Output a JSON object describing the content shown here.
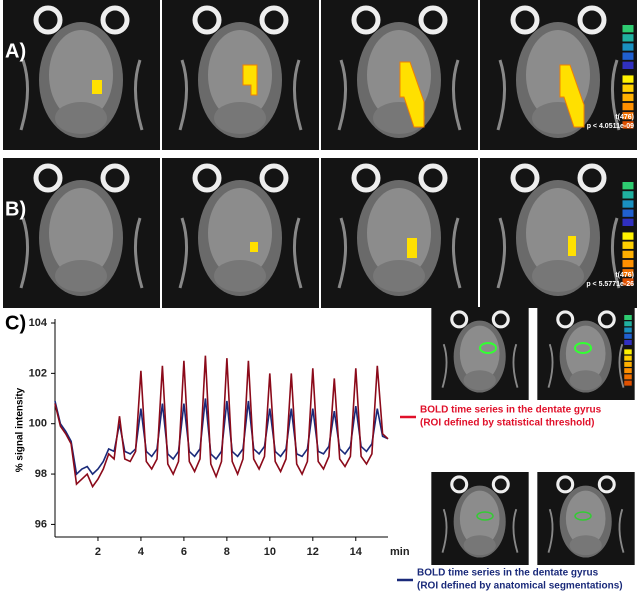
{
  "panels": {
    "a": {
      "label": "A)",
      "stat": "t(476)",
      "p": "p < 4.0511e-09"
    },
    "b": {
      "label": "B)",
      "stat": "t(476)",
      "p": "p < 5.5771e-26"
    },
    "c": {
      "label": "C)"
    }
  },
  "chart_data": {
    "type": "line",
    "ylabel": "% signal intensity",
    "xlabel": "min",
    "x": [
      0,
      0.25,
      0.5,
      0.75,
      1,
      1.25,
      1.5,
      1.75,
      2,
      2.25,
      2.5,
      2.75,
      3,
      3.25,
      3.5,
      3.75,
      4,
      4.25,
      4.5,
      4.75,
      5,
      5.25,
      5.5,
      5.75,
      6,
      6.25,
      6.5,
      6.75,
      7,
      7.25,
      7.5,
      7.75,
      8,
      8.25,
      8.5,
      8.75,
      9,
      9.25,
      9.5,
      9.75,
      10,
      10.25,
      10.5,
      10.75,
      11,
      11.25,
      11.5,
      11.75,
      12,
      12.25,
      12.5,
      12.75,
      13,
      13.25,
      13.5,
      13.75,
      14,
      14.25,
      14.5,
      14.75,
      15,
      15.25,
      15.5
    ],
    "series": [
      {
        "name": "BOLD time series in the dentate gyrus",
        "detail": "(ROI defined by statistical threshold)",
        "color": "#8b0a1a",
        "legend_color": "#e0102a",
        "values": [
          100.8,
          99.9,
          99.6,
          99.2,
          97.6,
          97.8,
          98.0,
          97.5,
          97.8,
          98.2,
          98.8,
          98.6,
          100.3,
          98.6,
          98.5,
          98.9,
          102.1,
          98.5,
          98.2,
          98.6,
          102.3,
          98.4,
          98.0,
          98.5,
          102.5,
          98.5,
          98.1,
          98.6,
          102.7,
          98.4,
          97.9,
          98.5,
          102.6,
          98.5,
          98.0,
          98.6,
          102.5,
          98.6,
          98.2,
          98.7,
          102.0,
          98.5,
          98.1,
          98.6,
          102.0,
          98.4,
          98.0,
          98.5,
          102.2,
          98.5,
          98.2,
          98.7,
          101.8,
          98.6,
          98.3,
          98.7,
          102.2,
          98.7,
          98.4,
          98.8,
          102.3,
          99.6,
          99.4
        ]
      },
      {
        "name": "BOLD time series in the dentate gyrus",
        "detail": "(ROI defined by anatomical segmentations)",
        "color": "#1a2a7a",
        "legend_color": "#1a2a7a",
        "values": [
          100.9,
          100.0,
          99.7,
          99.3,
          98.0,
          98.2,
          98.3,
          98.0,
          98.2,
          98.5,
          99.0,
          98.9,
          100.0,
          98.9,
          98.8,
          99.0,
          100.6,
          98.9,
          98.7,
          99.0,
          100.8,
          98.8,
          98.6,
          98.9,
          100.8,
          98.9,
          98.7,
          99.0,
          101.0,
          98.8,
          98.6,
          98.9,
          100.9,
          98.9,
          98.7,
          99.0,
          100.9,
          99.0,
          98.8,
          99.1,
          100.6,
          98.9,
          98.7,
          99.0,
          100.6,
          98.8,
          98.7,
          99.0,
          100.6,
          98.9,
          98.8,
          99.1,
          100.5,
          99.0,
          98.8,
          99.1,
          100.7,
          99.1,
          98.9,
          99.2,
          100.6,
          99.5,
          99.4
        ]
      }
    ],
    "xlim": [
      0,
      15.5
    ],
    "ylim": [
      95.5,
      104
    ],
    "xticks": [
      2,
      4,
      6,
      8,
      10,
      12,
      14
    ],
    "yticks": [
      96,
      98,
      100,
      102,
      104
    ]
  }
}
